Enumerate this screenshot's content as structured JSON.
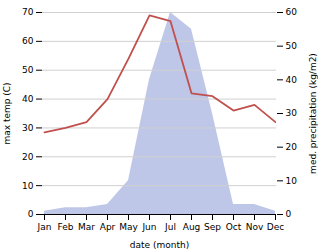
{
  "chart_data": {
    "type": "line",
    "categories": [
      "Jan",
      "Feb",
      "Mar",
      "Apr",
      "May",
      "Jun",
      "Jul",
      "Aug",
      "Sep",
      "Oct",
      "Nov",
      "Dec"
    ],
    "series": [
      {
        "type": "area",
        "axis": "y2",
        "color": "#bec7e8",
        "values": [
          1,
          2,
          2,
          3,
          10,
          40,
          60,
          55,
          30,
          3,
          3,
          1
        ]
      },
      {
        "type": "line",
        "color": "#c0504d",
        "values": [
          28.5,
          30,
          32,
          40,
          54,
          69,
          67,
          42,
          41,
          36,
          38,
          32
        ]
      }
    ],
    "xlabel": "date (month)",
    "ylabel": "max temp (C)",
    "y2label": "med. precipitation (kg/m2)",
    "ylim": [
      0,
      70
    ],
    "yticks": [
      0,
      10,
      20,
      30,
      40,
      50,
      60,
      70
    ],
    "y2lim": [
      0,
      60
    ],
    "y2ticks": [
      0,
      10,
      20,
      30,
      40,
      50,
      60
    ],
    "grid": true
  }
}
